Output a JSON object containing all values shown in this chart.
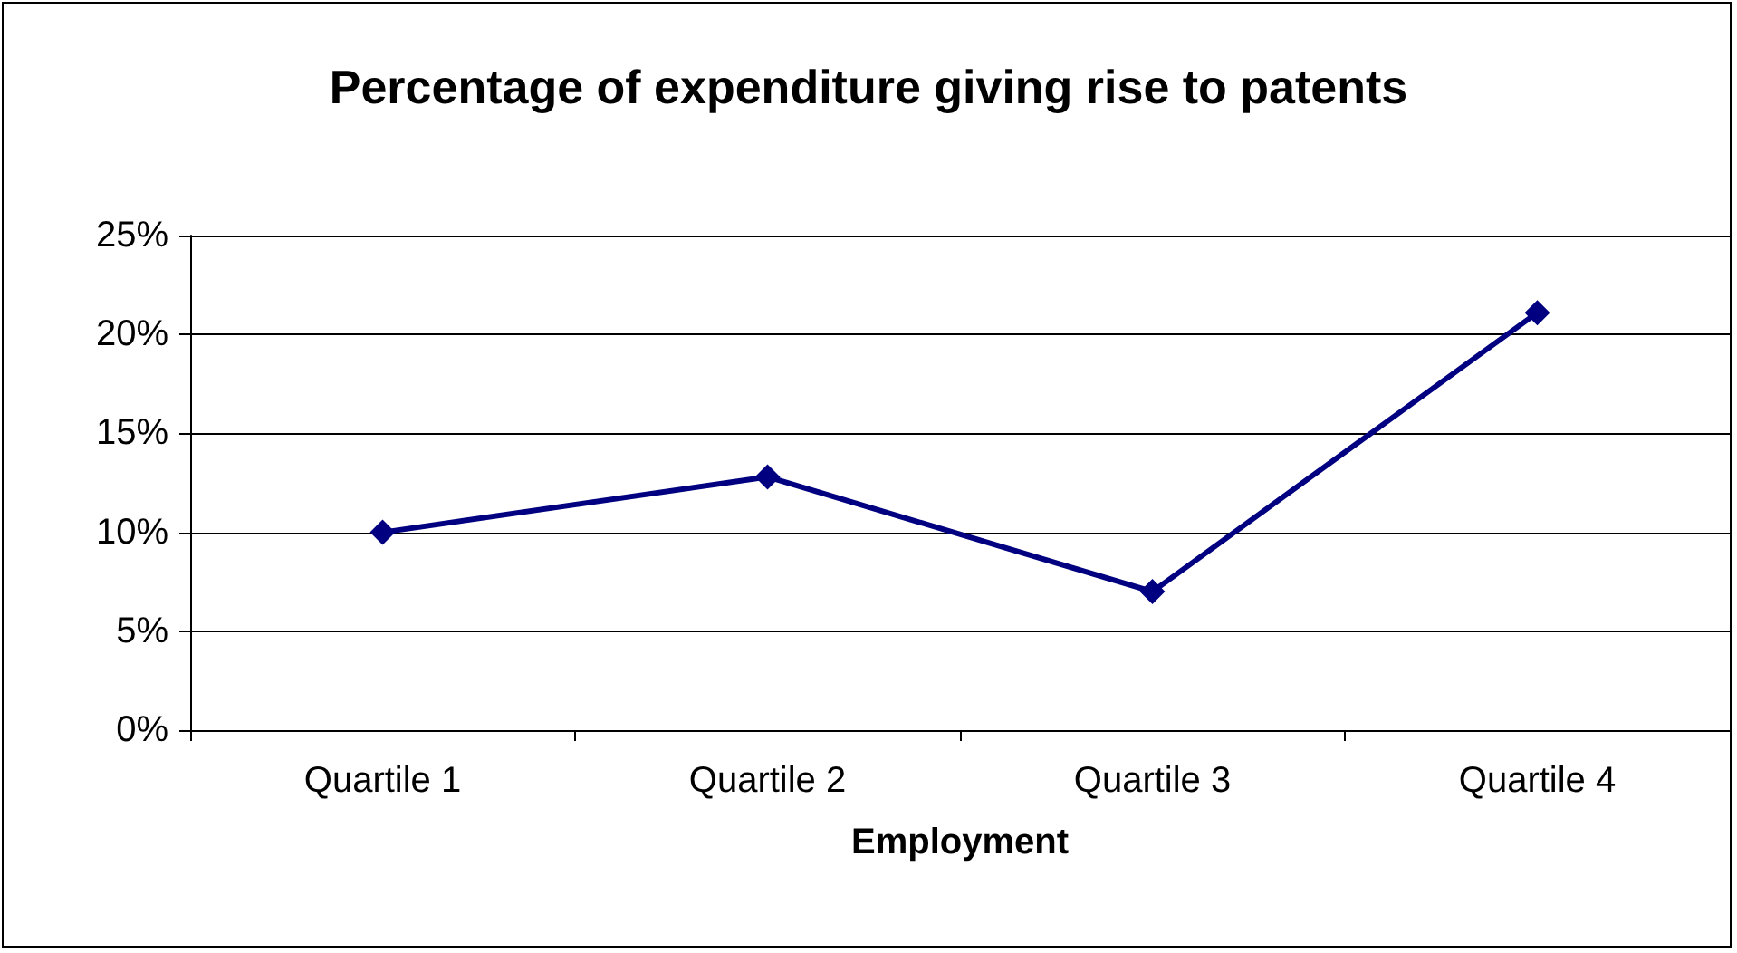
{
  "chart_data": {
    "type": "line",
    "title": "Percentage of expenditure giving rise to patents",
    "xlabel": "Employment",
    "categories": [
      "Quartile 1",
      "Quartile 2",
      "Quartile 3",
      "Quartile 4"
    ],
    "series": [
      {
        "color": "#000080",
        "values": [
          10,
          12.8,
          7,
          21.1
        ]
      }
    ],
    "ylim": [
      0,
      25
    ],
    "yticks": [
      {
        "value": 0,
        "label": "0%"
      },
      {
        "value": 5,
        "label": "5%"
      },
      {
        "value": 10,
        "label": "10%"
      },
      {
        "value": 15,
        "label": "15%"
      },
      {
        "value": 20,
        "label": "20%"
      },
      {
        "value": 25,
        "label": "25%"
      }
    ],
    "grid": "y",
    "marker": "diamond",
    "line_style": "solid"
  }
}
